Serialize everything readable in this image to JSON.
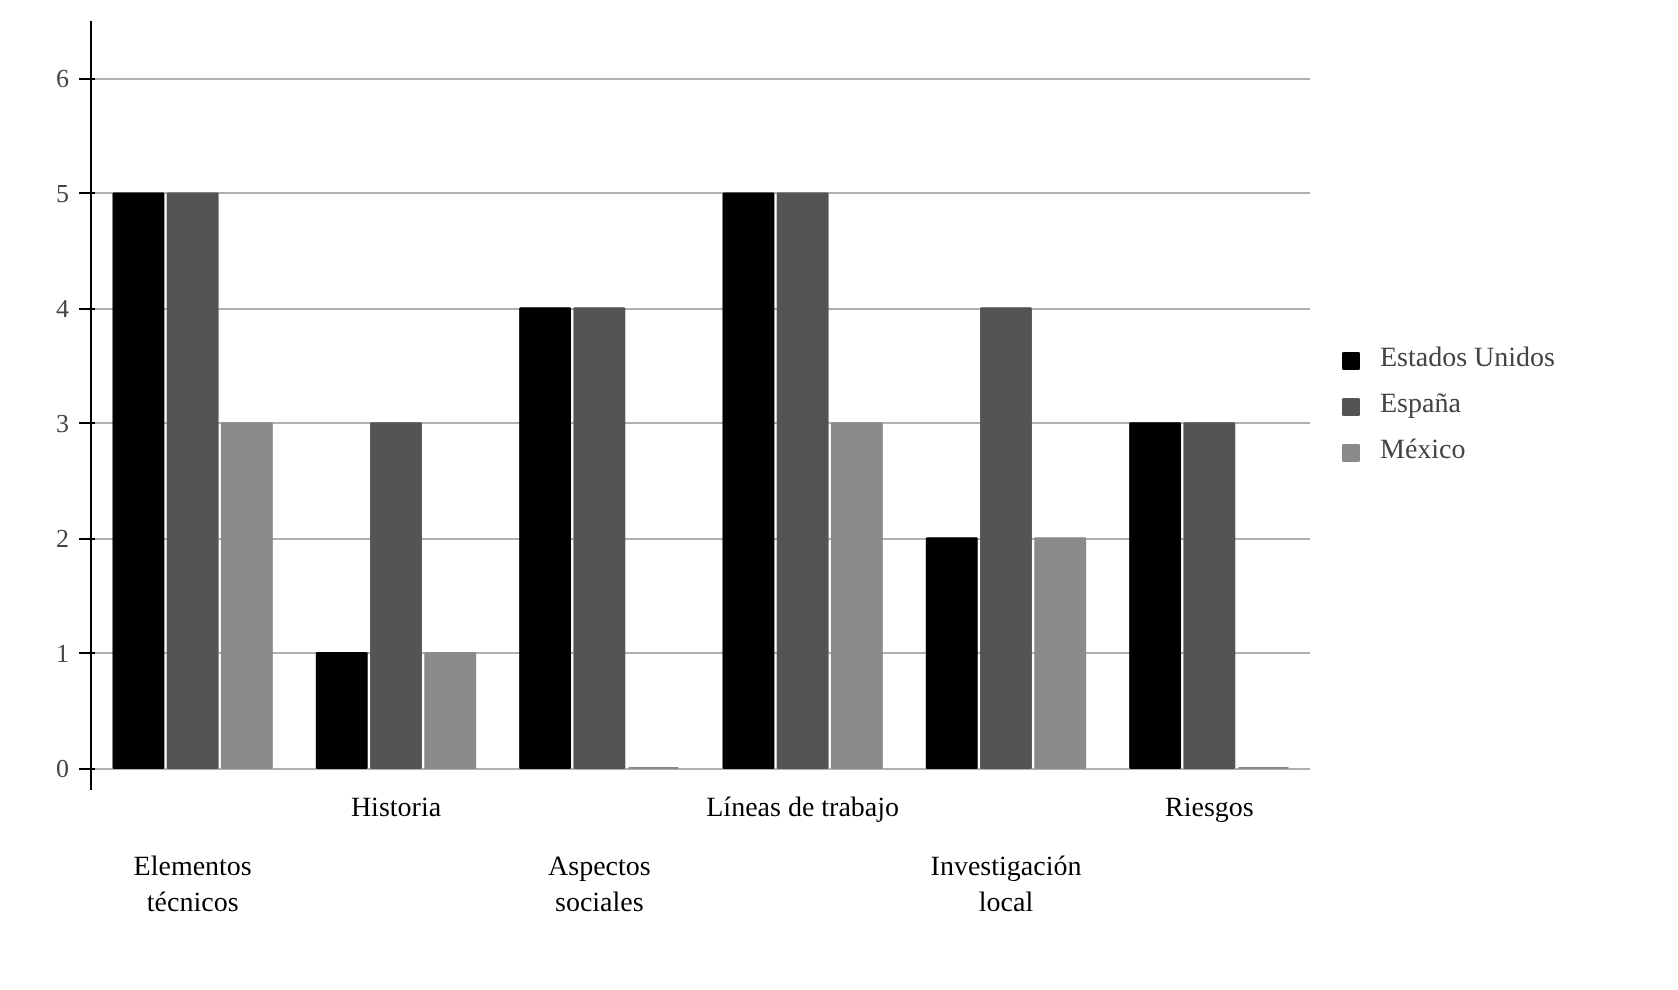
{
  "chart_data": {
    "type": "bar",
    "categories": [
      "Elementos\ntécnicos",
      "Historia",
      "Aspectos\nsociales",
      "Líneas de trabajo",
      "Investigación\nlocal",
      "Riesgos"
    ],
    "series": [
      {
        "name": "Estados Unidos",
        "color": "#000000",
        "values": [
          5,
          1,
          4,
          5,
          2,
          3
        ]
      },
      {
        "name": "España",
        "color": "#545454",
        "values": [
          5,
          3,
          4,
          5,
          4,
          3
        ]
      },
      {
        "name": "México",
        "color": "#8a8a8a",
        "values": [
          3,
          1,
          0,
          3,
          2,
          0
        ]
      }
    ],
    "ylim": [
      -0.2,
      6.5
    ],
    "yticks": [
      0,
      1,
      2,
      3,
      4,
      5,
      6
    ],
    "grid": "y",
    "legend": "right"
  }
}
